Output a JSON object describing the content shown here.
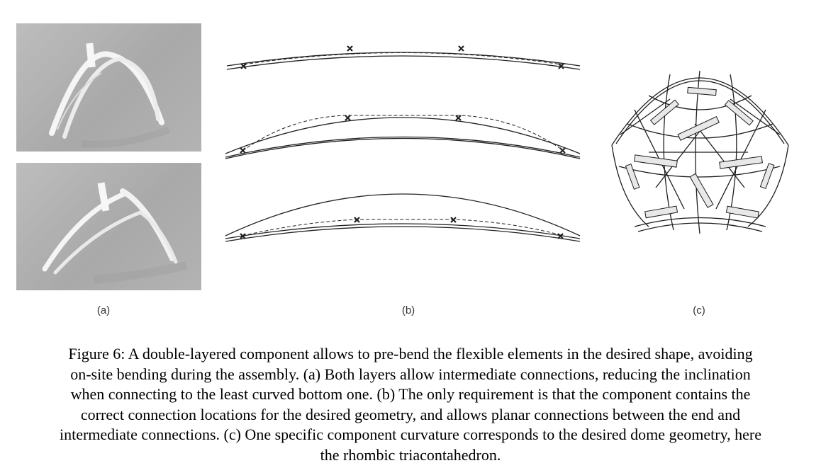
{
  "figure": {
    "sublabels": {
      "a": "(a)",
      "b": "(b)",
      "c": "(c)"
    },
    "caption_lines": [
      "Figure 6: A double-layered component allows to pre-bend the flexible elements in the desired shape, avoiding",
      "on-site bending during the assembly. (a) Both layers allow intermediate connections, reducing the inclination",
      "when connecting to the least curved bottom one. (b) The only requirement is that the component contains the",
      "correct connection locations for the desired geometry, and allows planar connections between the end and",
      "intermediate connections. (c) One specific component curvature corresponds to the desired dome geometry, here",
      "the rhombic triacontahedron."
    ]
  },
  "colors": {
    "photo_bg": "#b0b0b0",
    "model": "#f4f4f4",
    "line": "#222222"
  }
}
